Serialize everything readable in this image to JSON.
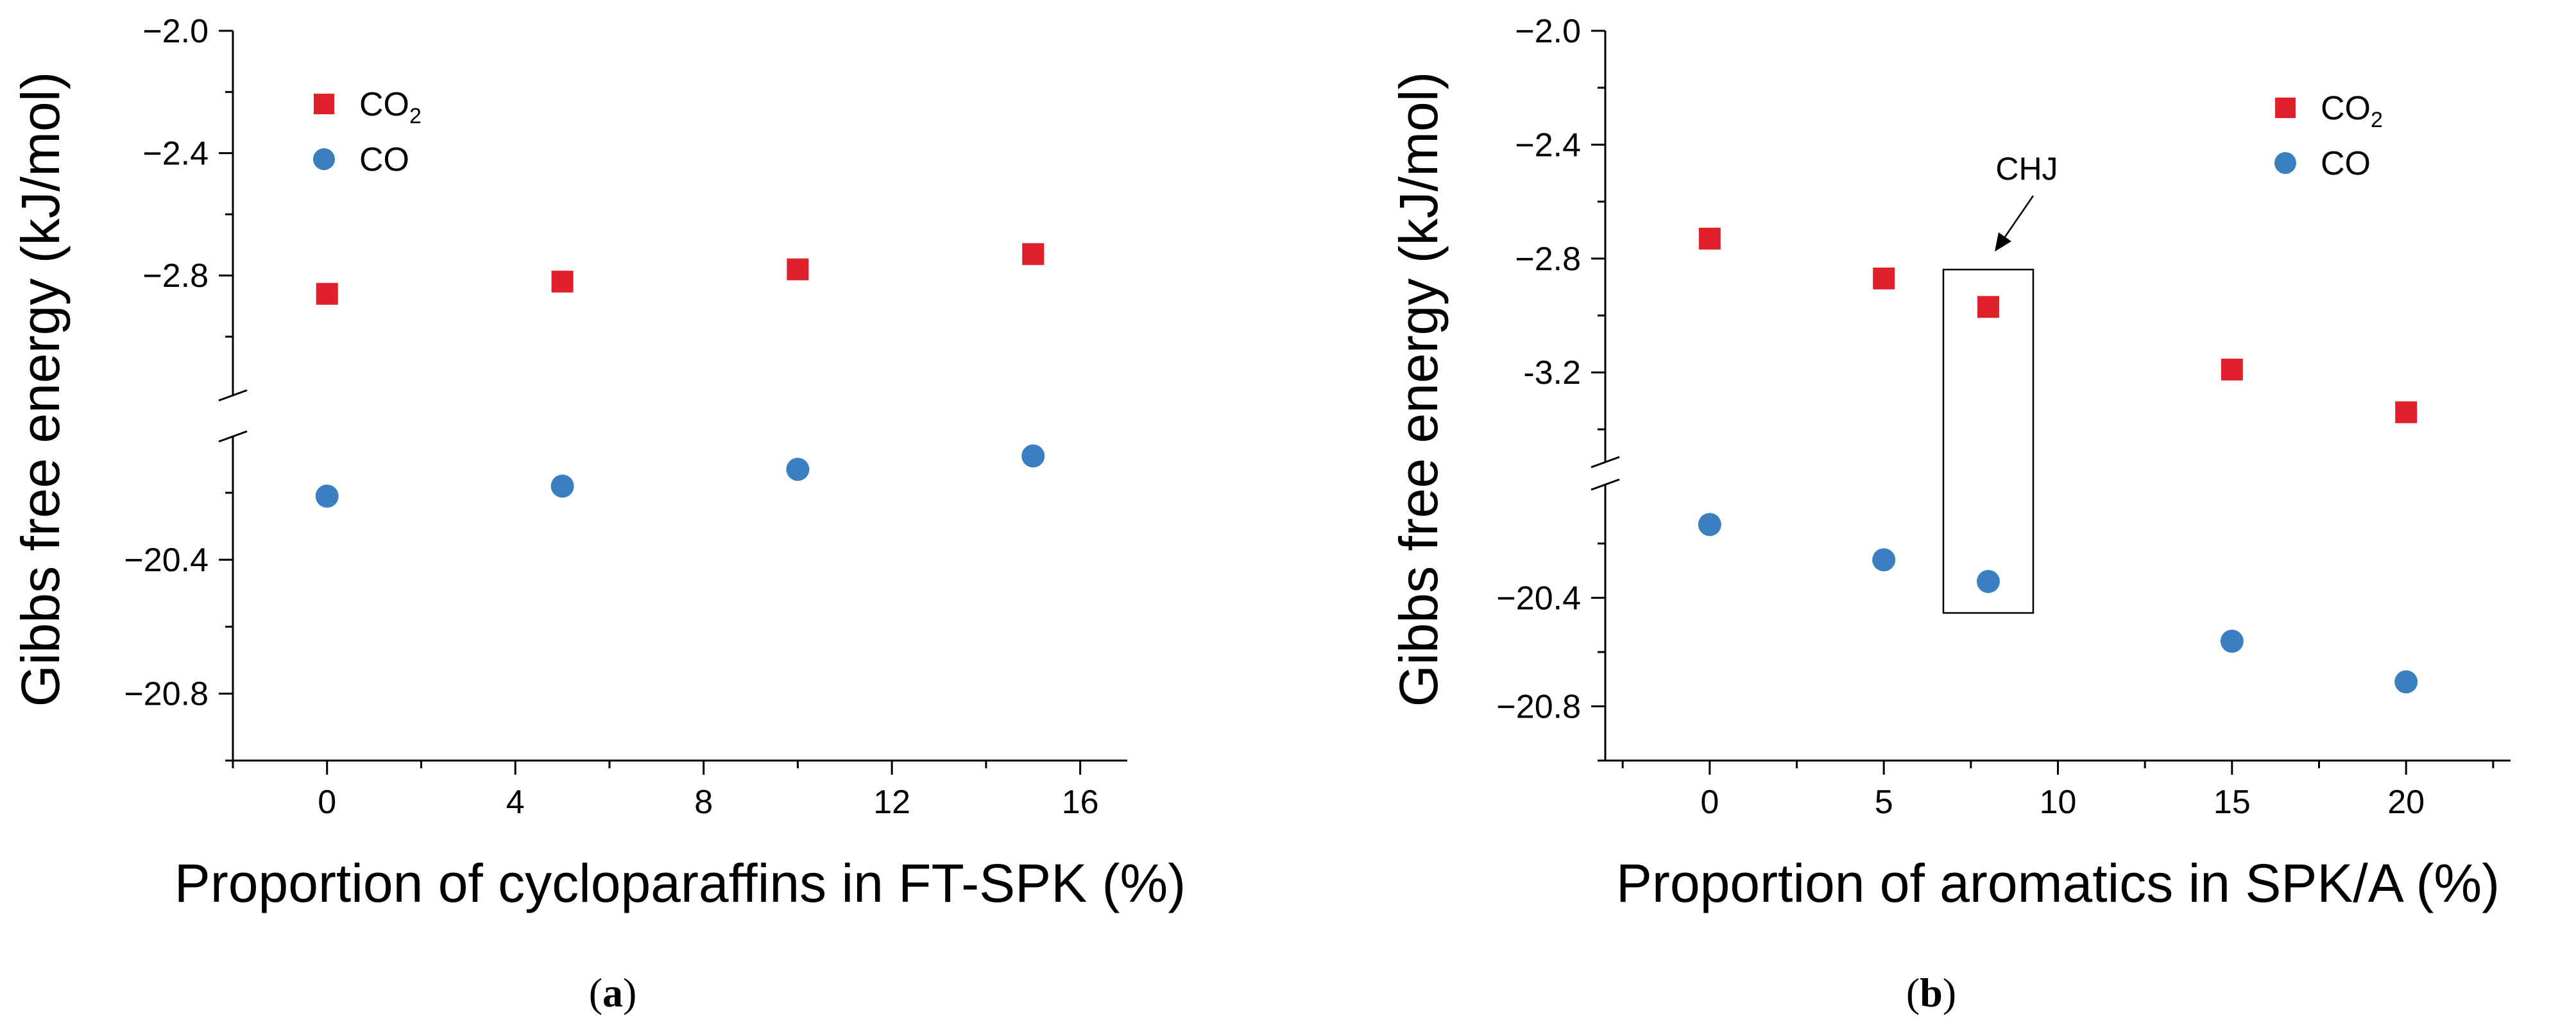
{
  "colors": {
    "co2": "#e0202a",
    "co": "#3a7fc0",
    "axis": "#000000"
  },
  "chart_data": [
    {
      "panel": "a",
      "type": "scatter",
      "panel_label": "a",
      "xlabel": "Proportion of cycloparaffins in FT-SPK (%)",
      "ylabel": "Gibbs free energy (kJ/mol)",
      "xlim": [
        -2,
        17
      ],
      "x_ticks": [
        0,
        4,
        8,
        12,
        16
      ],
      "x_tick_labels": [
        "0",
        "4",
        "8",
        "12",
        "16"
      ],
      "y_break": true,
      "y_upper": {
        "range": [
          -2.0,
          -3.15
        ],
        "ticks": [
          -2.0,
          -2.4,
          -2.8
        ],
        "tick_labels": [
          "−2.0",
          "−2.4",
          "−2.8"
        ]
      },
      "y_lower": {
        "range": [
          -20.07,
          -21.0
        ],
        "ticks": [
          -20.4,
          -20.8
        ],
        "tick_labels": [
          "−20.4",
          "−20.8"
        ]
      },
      "legend": {
        "position": "top-left",
        "entries": [
          {
            "name": "CO",
            "sub": "2",
            "marker": "square",
            "color_key": "co2"
          },
          {
            "name": "CO",
            "sub": "",
            "marker": "circle",
            "color_key": "co"
          }
        ]
      },
      "series": [
        {
          "name": "CO2",
          "marker": "square",
          "x": [
            0,
            5,
            10,
            15
          ],
          "y": [
            -2.86,
            -2.82,
            -2.78,
            -2.73
          ]
        },
        {
          "name": "CO",
          "marker": "circle",
          "x": [
            0,
            5,
            10,
            15
          ],
          "y": [
            -20.21,
            -20.18,
            -20.13,
            -20.09
          ]
        }
      ]
    },
    {
      "panel": "b",
      "type": "scatter",
      "panel_label": "b",
      "xlabel": "Proportion of aromatics in SPK/A (%)",
      "ylabel": "Gibbs free energy (kJ/mol)",
      "xlim": [
        -3,
        23
      ],
      "x_ticks": [
        0,
        5,
        10,
        15,
        20
      ],
      "x_tick_labels": [
        "0",
        "5",
        "10",
        "15",
        "20"
      ],
      "y_break": true,
      "y_upper": {
        "range": [
          -2.0,
          -3.47
        ],
        "ticks": [
          -2.0,
          -2.4,
          -2.8,
          -3.2
        ],
        "tick_labels": [
          "−2.0",
          "−2.4",
          "−2.8",
          "-3.2"
        ]
      },
      "y_lower": {
        "range": [
          -20.03,
          -21.0
        ],
        "ticks": [
          -20.4,
          -20.8
        ],
        "tick_labels": [
          "−20.4",
          "−20.8"
        ]
      },
      "legend": {
        "position": "top-right",
        "entries": [
          {
            "name": "CO",
            "sub": "2",
            "marker": "square",
            "color_key": "co2"
          },
          {
            "name": "CO",
            "sub": "",
            "marker": "circle",
            "color_key": "co"
          }
        ]
      },
      "annotation": {
        "text": "CHJ",
        "x": 8
      },
      "series": [
        {
          "name": "CO2",
          "marker": "square",
          "x": [
            0,
            5,
            8,
            15,
            20
          ],
          "y": [
            -2.73,
            -2.87,
            -2.97,
            -3.19,
            -3.34
          ]
        },
        {
          "name": "CO",
          "marker": "circle",
          "x": [
            0,
            5,
            8,
            15,
            20
          ],
          "y": [
            -20.13,
            -20.26,
            -20.34,
            -20.56,
            -20.71
          ]
        }
      ]
    }
  ]
}
